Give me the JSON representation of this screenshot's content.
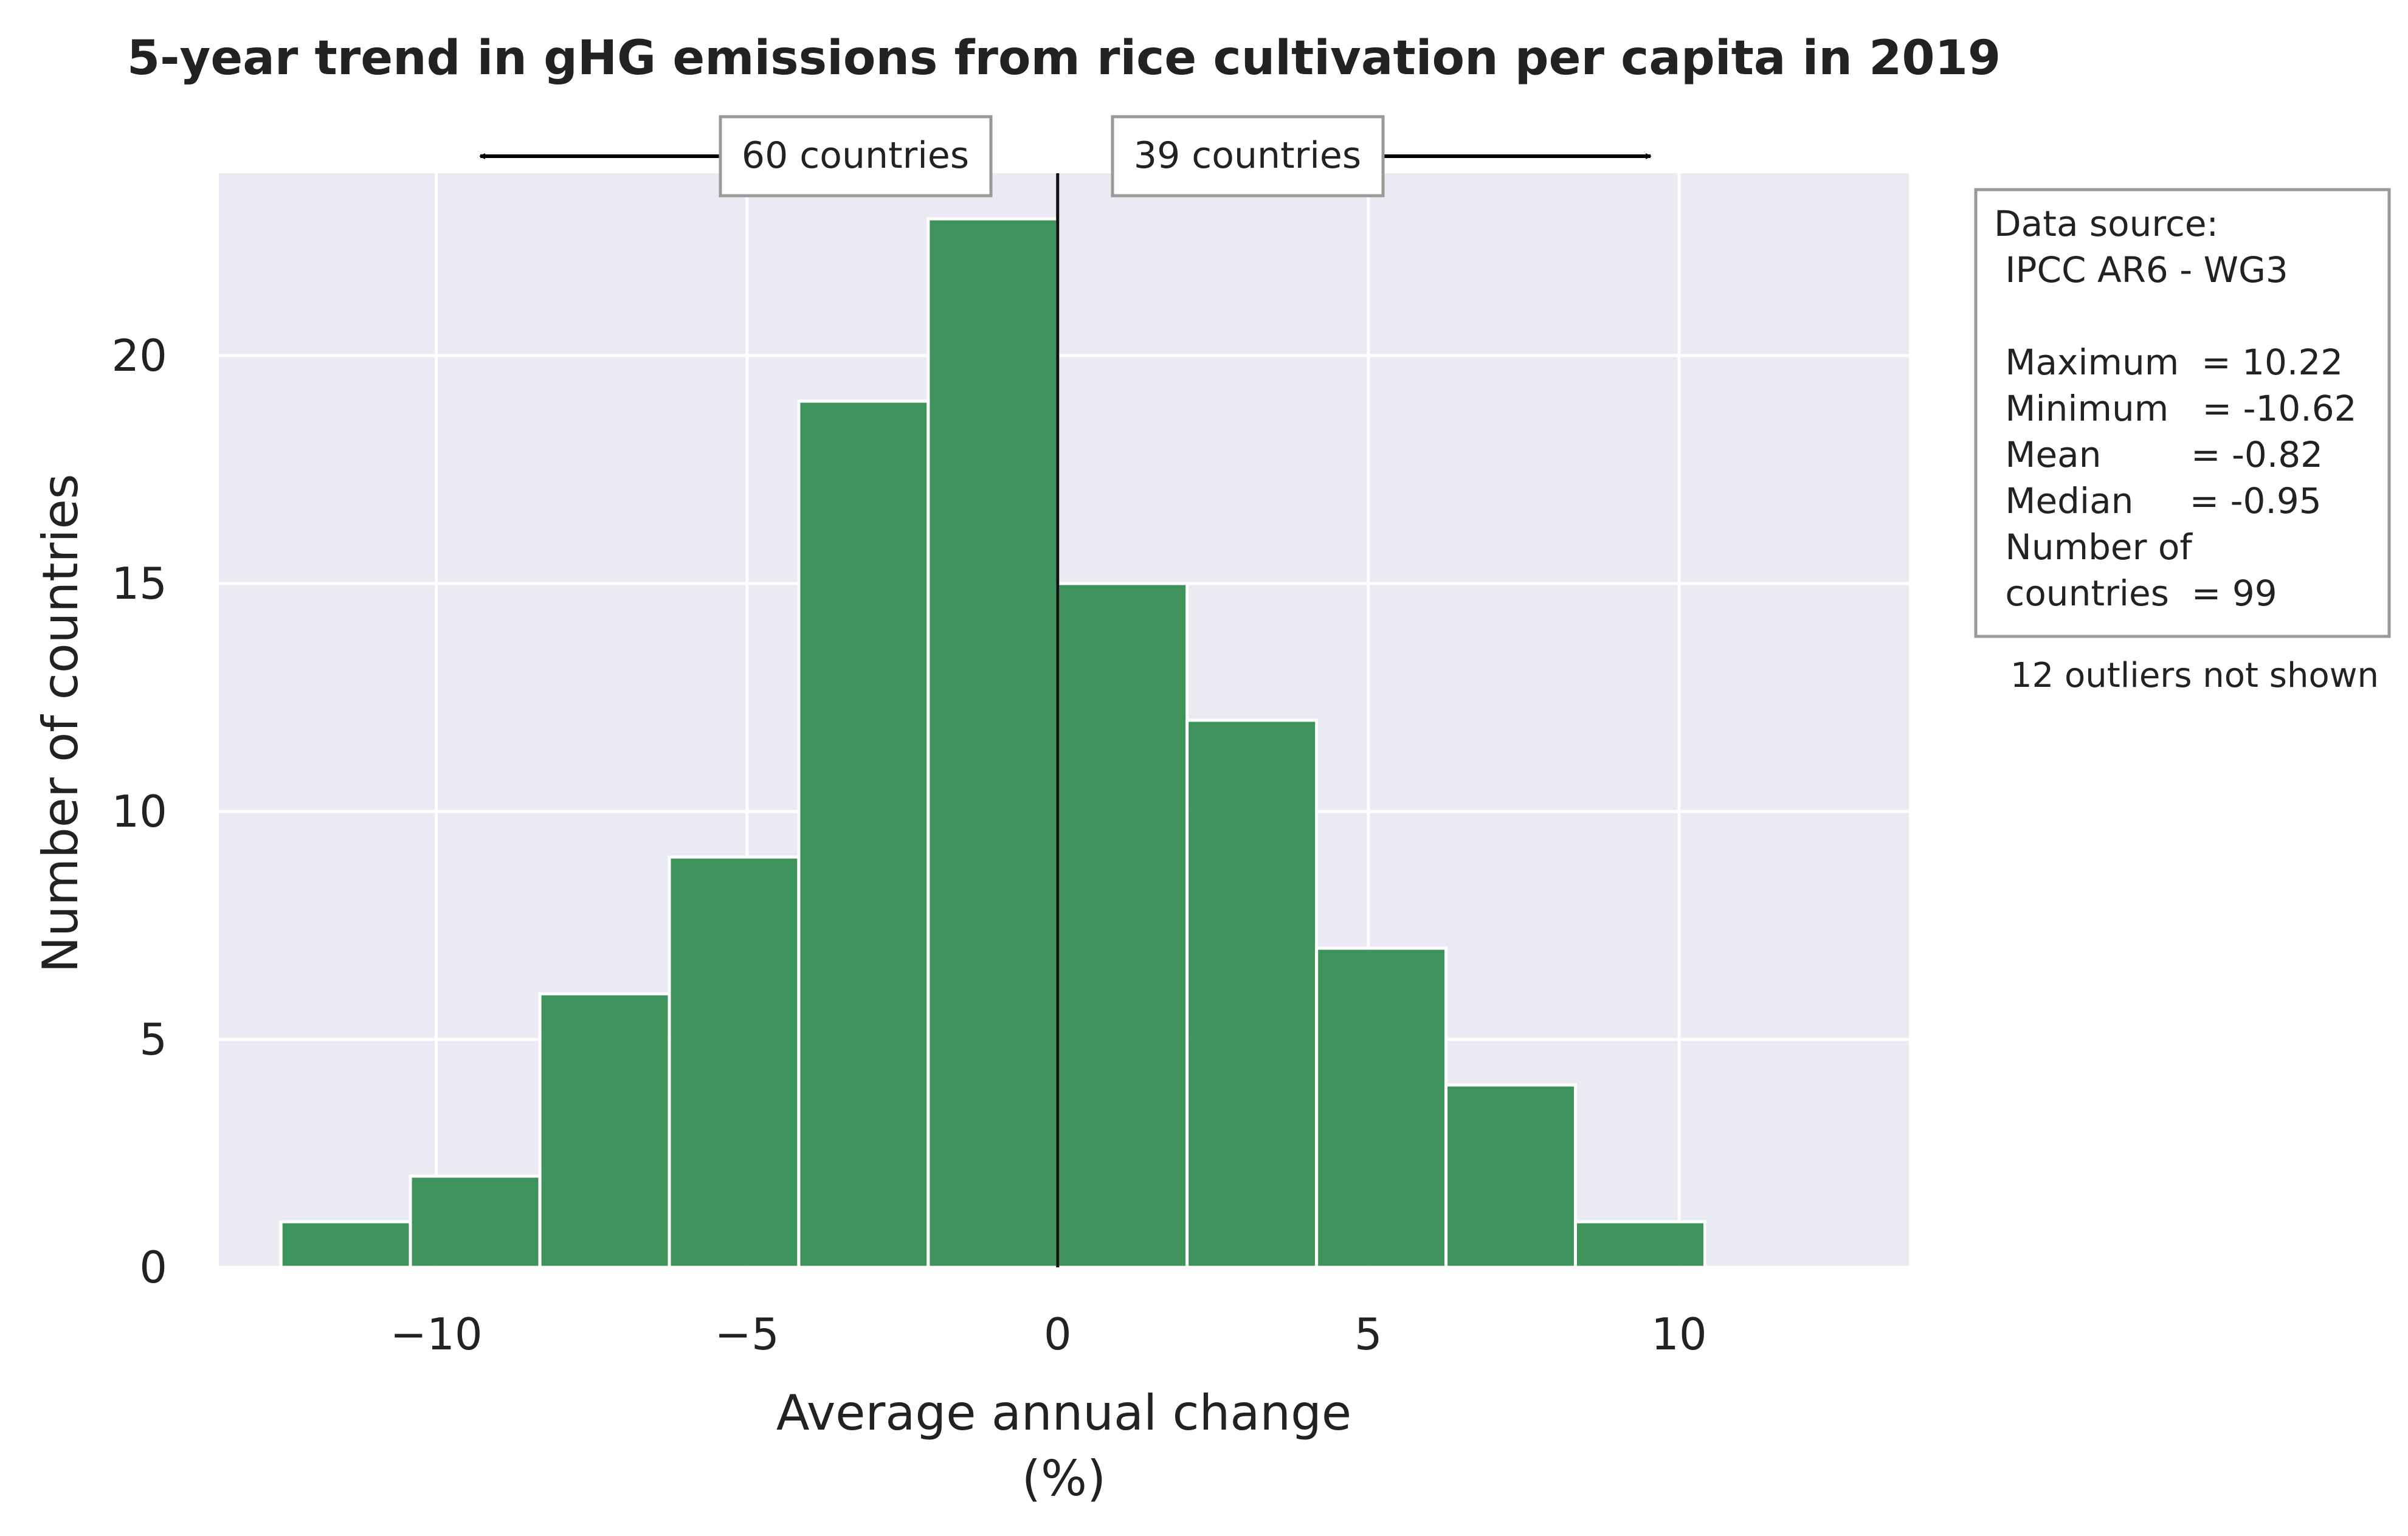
{
  "chart_data": {
    "type": "bar",
    "title": "5-year trend in gHG emissions from rice cultivation per capita in 2019",
    "xlabel": "Average annual change",
    "xlabel_unit": "(%)",
    "ylabel": "Number of countries",
    "xlim": [
      -13.5,
      13.7
    ],
    "ylim": [
      0,
      24
    ],
    "xticks": [
      -10,
      -5,
      0,
      5,
      10
    ],
    "xtick_labels": [
      "−10",
      "−5",
      "0",
      "5",
      "10"
    ],
    "yticks": [
      0,
      5,
      10,
      15,
      20
    ],
    "ytick_labels": [
      "0",
      "5",
      "10",
      "15",
      "20"
    ],
    "grid": true,
    "bar_color": "#2e8b4e",
    "bins": [
      {
        "x0": -12.5,
        "x1": -10.417,
        "count": 1
      },
      {
        "x0": -10.417,
        "x1": -8.333,
        "count": 2
      },
      {
        "x0": -8.333,
        "x1": -6.25,
        "count": 6
      },
      {
        "x0": -6.25,
        "x1": -4.167,
        "count": 9
      },
      {
        "x0": -4.167,
        "x1": -2.083,
        "count": 19
      },
      {
        "x0": -2.083,
        "x1": 0.0,
        "count": 23
      },
      {
        "x0": 0.0,
        "x1": 2.083,
        "count": 15
      },
      {
        "x0": 2.083,
        "x1": 4.167,
        "count": 12
      },
      {
        "x0": 4.167,
        "x1": 6.25,
        "count": 7
      },
      {
        "x0": 6.25,
        "x1": 8.333,
        "count": 4
      },
      {
        "x0": 8.333,
        "x1": 10.417,
        "count": 1
      }
    ],
    "reference_line_x": 0,
    "annotations": {
      "left_count": "60 countries",
      "right_count": "39 countries"
    },
    "stats_box": {
      "lines": [
        "Data source:",
        " IPCC AR6 - WG3",
        "",
        " Maximum  = 10.22",
        " Minimum   = -10.62",
        " Mean        = -0.82",
        " Median     = -0.95",
        " Number of",
        " countries  = 99"
      ]
    },
    "outliers_note": "12 outliers not shown"
  }
}
